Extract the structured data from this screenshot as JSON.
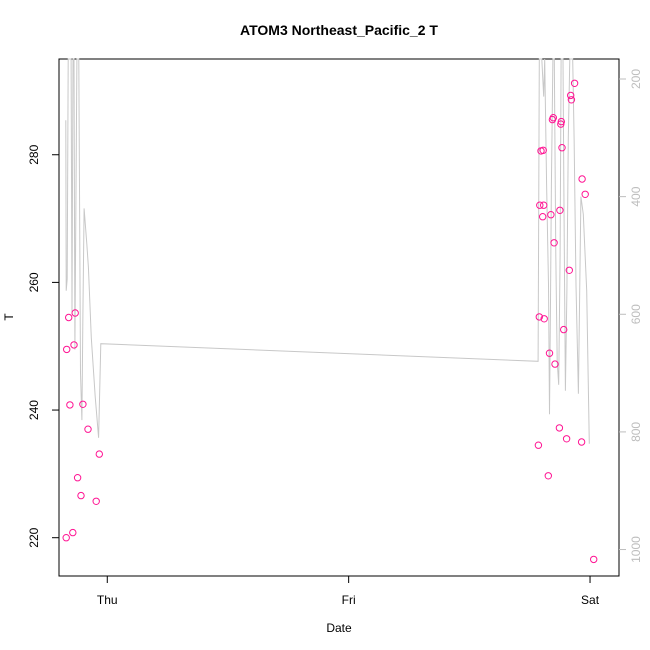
{
  "chart_data": {
    "type": "scatter",
    "title": "ATOM3 Northeast_Pacific_2 T",
    "xlabel": "Date",
    "ylabel": "T",
    "x_ticks": [
      {
        "label": "Thu",
        "day": 0
      },
      {
        "label": "Fri",
        "day": 1
      },
      {
        "label": "Sat",
        "day": 2
      }
    ],
    "xlim": [
      -0.2,
      2.12
    ],
    "ylim": [
      214,
      295
    ],
    "y_ticks": [
      220,
      240,
      260,
      280
    ],
    "right_axis": {
      "ticks": [
        200,
        400,
        600,
        800,
        1000
      ],
      "lim_top": 166,
      "lim_bottom": 1045,
      "color": "#bdbdbd"
    },
    "grid": false,
    "series": [
      {
        "marker": "circle",
        "color": "#ff1493",
        "points": [
          {
            "x": -0.17,
            "y": 220.0
          },
          {
            "x": -0.168,
            "y": 249.5
          },
          {
            "x": -0.16,
            "y": 254.5
          },
          {
            "x": -0.155,
            "y": 240.8
          },
          {
            "x": -0.143,
            "y": 220.8
          },
          {
            "x": -0.138,
            "y": 250.2
          },
          {
            "x": -0.133,
            "y": 255.2
          },
          {
            "x": -0.123,
            "y": 229.4
          },
          {
            "x": -0.109,
            "y": 226.6
          },
          {
            "x": -0.101,
            "y": 240.9
          },
          {
            "x": -0.08,
            "y": 237.0
          },
          {
            "x": -0.046,
            "y": 225.7
          },
          {
            "x": -0.033,
            "y": 233.1
          },
          {
            "x": 1.786,
            "y": 234.5
          },
          {
            "x": 1.79,
            "y": 254.6
          },
          {
            "x": 1.792,
            "y": 272.1
          },
          {
            "x": 1.797,
            "y": 280.6
          },
          {
            "x": 1.804,
            "y": 270.3
          },
          {
            "x": 1.806,
            "y": 280.7
          },
          {
            "x": 1.808,
            "y": 272.1
          },
          {
            "x": 1.81,
            "y": 254.3
          },
          {
            "x": 1.827,
            "y": 229.7
          },
          {
            "x": 1.832,
            "y": 248.9
          },
          {
            "x": 1.838,
            "y": 270.6
          },
          {
            "x": 1.844,
            "y": 285.5
          },
          {
            "x": 1.848,
            "y": 285.8
          },
          {
            "x": 1.851,
            "y": 266.2
          },
          {
            "x": 1.855,
            "y": 247.2
          },
          {
            "x": 1.873,
            "y": 237.2
          },
          {
            "x": 1.875,
            "y": 271.3
          },
          {
            "x": 1.879,
            "y": 284.8
          },
          {
            "x": 1.881,
            "y": 285.2
          },
          {
            "x": 1.884,
            "y": 281.1
          },
          {
            "x": 1.891,
            "y": 252.6
          },
          {
            "x": 1.903,
            "y": 235.5
          },
          {
            "x": 1.914,
            "y": 261.9
          },
          {
            "x": 1.92,
            "y": 289.3
          },
          {
            "x": 1.923,
            "y": 288.6
          },
          {
            "x": 1.936,
            "y": 291.2
          },
          {
            "x": 1.965,
            "y": 235.0
          },
          {
            "x": 1.967,
            "y": 276.2
          },
          {
            "x": 1.98,
            "y": 273.8
          },
          {
            "x": 2.015,
            "y": 216.6
          }
        ]
      },
      {
        "type": "line",
        "color": "#c8c8c8",
        "axis": "right",
        "points": [
          {
            "x": -0.172,
            "y": 270
          },
          {
            "x": -0.17,
            "y": 560
          },
          {
            "x": -0.166,
            "y": 540
          },
          {
            "x": -0.162,
            "y": 166
          },
          {
            "x": -0.15,
            "y": 166
          },
          {
            "x": -0.146,
            "y": 600
          },
          {
            "x": -0.142,
            "y": 166
          },
          {
            "x": -0.138,
            "y": 166
          },
          {
            "x": -0.134,
            "y": 660
          },
          {
            "x": -0.126,
            "y": 166
          },
          {
            "x": -0.118,
            "y": 166
          },
          {
            "x": -0.111,
            "y": 700
          },
          {
            "x": -0.105,
            "y": 780
          },
          {
            "x": -0.101,
            "y": 600
          },
          {
            "x": -0.096,
            "y": 420
          },
          {
            "x": -0.085,
            "y": 480
          },
          {
            "x": -0.078,
            "y": 520
          },
          {
            "x": -0.066,
            "y": 640
          },
          {
            "x": -0.05,
            "y": 740
          },
          {
            "x": -0.036,
            "y": 810
          },
          {
            "x": -0.027,
            "y": 650
          },
          {
            "x": 1.785,
            "y": 680
          },
          {
            "x": 1.79,
            "y": 166
          },
          {
            "x": 1.8,
            "y": 166
          },
          {
            "x": 1.808,
            "y": 230
          },
          {
            "x": 1.812,
            "y": 166
          },
          {
            "x": 1.82,
            "y": 380
          },
          {
            "x": 1.828,
            "y": 550
          },
          {
            "x": 1.832,
            "y": 770
          },
          {
            "x": 1.836,
            "y": 600
          },
          {
            "x": 1.84,
            "y": 380
          },
          {
            "x": 1.846,
            "y": 166
          },
          {
            "x": 1.852,
            "y": 166
          },
          {
            "x": 1.858,
            "y": 500
          },
          {
            "x": 1.864,
            "y": 680
          },
          {
            "x": 1.87,
            "y": 720
          },
          {
            "x": 1.876,
            "y": 500
          },
          {
            "x": 1.88,
            "y": 166
          },
          {
            "x": 1.888,
            "y": 166
          },
          {
            "x": 1.892,
            "y": 420
          },
          {
            "x": 1.898,
            "y": 730
          },
          {
            "x": 1.904,
            "y": 560
          },
          {
            "x": 1.91,
            "y": 300
          },
          {
            "x": 1.916,
            "y": 166
          },
          {
            "x": 1.928,
            "y": 166
          },
          {
            "x": 1.934,
            "y": 300
          },
          {
            "x": 1.942,
            "y": 550
          },
          {
            "x": 1.952,
            "y": 735
          },
          {
            "x": 1.962,
            "y": 400
          },
          {
            "x": 1.972,
            "y": 430
          },
          {
            "x": 1.986,
            "y": 560
          },
          {
            "x": 1.997,
            "y": 820
          }
        ]
      }
    ]
  }
}
